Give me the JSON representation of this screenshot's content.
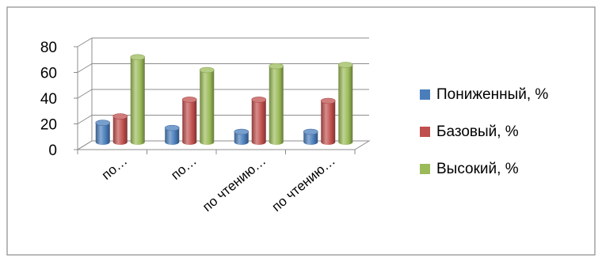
{
  "chart_data": {
    "type": "bar",
    "categories": [
      "по…",
      "по…",
      "по чтению…",
      "по чтению…"
    ],
    "series": [
      {
        "name": "Пониженный, %",
        "values": [
          15,
          11,
          8,
          8
        ],
        "color": "#4a7ebb"
      },
      {
        "name": "Базовый, %",
        "values": [
          20,
          33,
          33,
          32
        ],
        "color": "#c0504d"
      },
      {
        "name": "Высокий, %",
        "values": [
          66,
          56,
          59,
          60
        ],
        "color": "#9bbb59"
      }
    ],
    "y_ticks": [
      "0",
      "20",
      "40",
      "60",
      "80"
    ],
    "ylim": [
      0,
      80
    ],
    "grid": true,
    "legend_position": "right",
    "style": "3d-cylinder"
  }
}
